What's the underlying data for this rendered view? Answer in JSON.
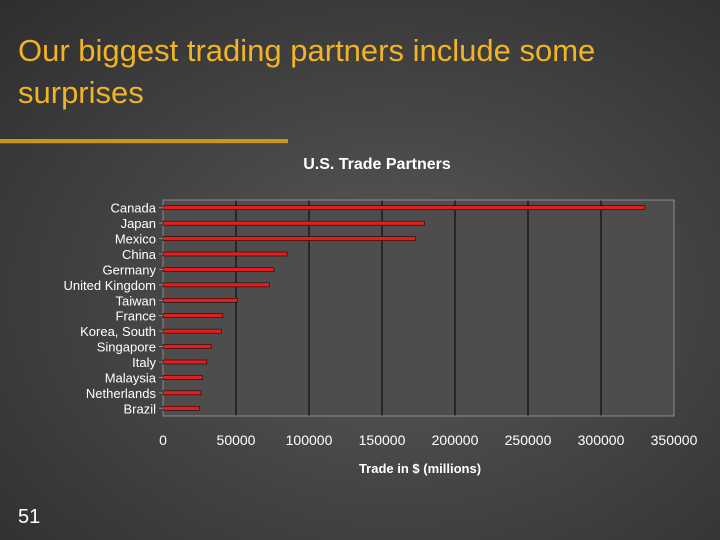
{
  "slide": {
    "title": "Our biggest trading partners include some surprises",
    "page_number": "51"
  },
  "colors": {
    "title": "#f2b324",
    "bar": "#e02020",
    "plot_area": "#4d4d4d",
    "grid": "#000000"
  },
  "chart_data": {
    "type": "bar",
    "orientation": "horizontal",
    "title": "U.S. Trade Partners",
    "xlabel": "Trade in $ (millions)",
    "ylabel": "",
    "xlim": [
      0,
      350000
    ],
    "xticks": [
      0,
      50000,
      100000,
      150000,
      200000,
      250000,
      300000,
      350000
    ],
    "categories": [
      "Canada",
      "Japan",
      "Mexico",
      "China",
      "Germany",
      "United Kingdom",
      "Taiwan",
      "France",
      "Korea, South",
      "Singapore",
      "Italy",
      "Malaysia",
      "Netherlands",
      "Brazil"
    ],
    "values": [
      330000,
      179000,
      173000,
      85000,
      76000,
      73000,
      51000,
      41000,
      40000,
      33000,
      30000,
      27000,
      26000,
      25000
    ],
    "grid": true,
    "legend": "none"
  }
}
